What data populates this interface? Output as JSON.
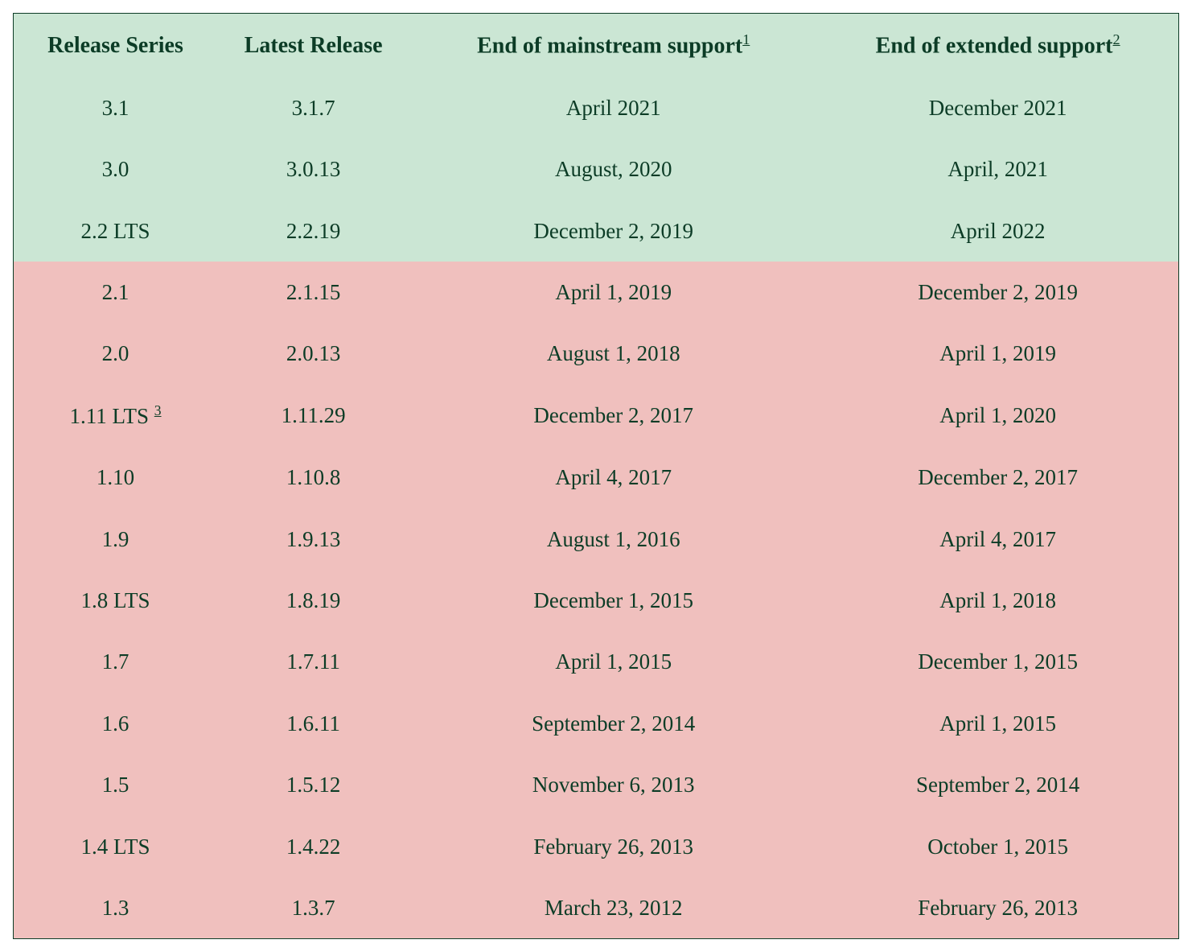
{
  "table": {
    "type": "table",
    "border_color": "#0c3c26",
    "text_color": "#0c3c26",
    "header_fontsize": 28,
    "body_fontsize": 27,
    "font_family": "Palatino, serif",
    "supported_bg": "#cbe6d4",
    "unsupported_bg": "#f0c0be",
    "column_widths_pct": [
      17.5,
      16.5,
      35,
      31
    ],
    "columns": [
      {
        "key": "series",
        "label": "Release Series",
        "footnote": null
      },
      {
        "key": "latest",
        "label": "Latest Release",
        "footnote": null
      },
      {
        "key": "mainstream",
        "label": "End of mainstream support",
        "footnote": "1"
      },
      {
        "key": "extended",
        "label": "End of extended support",
        "footnote": "2"
      }
    ],
    "rows": [
      {
        "status": "supported",
        "series": "3.1",
        "series_note": null,
        "latest": "3.1.7",
        "mainstream": "April 2021",
        "extended": "December 2021"
      },
      {
        "status": "supported",
        "series": "3.0",
        "series_note": null,
        "latest": "3.0.13",
        "mainstream": "August, 2020",
        "extended": "April, 2021"
      },
      {
        "status": "supported",
        "series": "2.2 LTS",
        "series_note": null,
        "latest": "2.2.19",
        "mainstream": "December 2, 2019",
        "extended": "April 2022"
      },
      {
        "status": "unsupported",
        "series": "2.1",
        "series_note": null,
        "latest": "2.1.15",
        "mainstream": "April 1, 2019",
        "extended": "December 2, 2019"
      },
      {
        "status": "unsupported",
        "series": "2.0",
        "series_note": null,
        "latest": "2.0.13",
        "mainstream": "August 1, 2018",
        "extended": "April 1, 2019"
      },
      {
        "status": "unsupported",
        "series": "1.11 LTS ",
        "series_note": "3",
        "latest": "1.11.29",
        "mainstream": "December 2, 2017",
        "extended": "April 1, 2020"
      },
      {
        "status": "unsupported",
        "series": "1.10",
        "series_note": null,
        "latest": "1.10.8",
        "mainstream": "April 4, 2017",
        "extended": "December 2, 2017"
      },
      {
        "status": "unsupported",
        "series": "1.9",
        "series_note": null,
        "latest": "1.9.13",
        "mainstream": "August 1, 2016",
        "extended": "April 4, 2017"
      },
      {
        "status": "unsupported",
        "series": "1.8 LTS",
        "series_note": null,
        "latest": "1.8.19",
        "mainstream": "December 1, 2015",
        "extended": "April 1, 2018"
      },
      {
        "status": "unsupported",
        "series": "1.7",
        "series_note": null,
        "latest": "1.7.11",
        "mainstream": "April 1, 2015",
        "extended": "December 1, 2015"
      },
      {
        "status": "unsupported",
        "series": "1.6",
        "series_note": null,
        "latest": "1.6.11",
        "mainstream": "September 2, 2014",
        "extended": "April 1, 2015"
      },
      {
        "status": "unsupported",
        "series": "1.5",
        "series_note": null,
        "latest": "1.5.12",
        "mainstream": "November 6, 2013",
        "extended": "September 2, 2014"
      },
      {
        "status": "unsupported",
        "series": "1.4 LTS",
        "series_note": null,
        "latest": "1.4.22",
        "mainstream": "February 26, 2013",
        "extended": "October 1, 2015"
      },
      {
        "status": "unsupported",
        "series": "1.3",
        "series_note": null,
        "latest": "1.3.7",
        "mainstream": "March 23, 2012",
        "extended": "February 26, 2013"
      }
    ]
  }
}
